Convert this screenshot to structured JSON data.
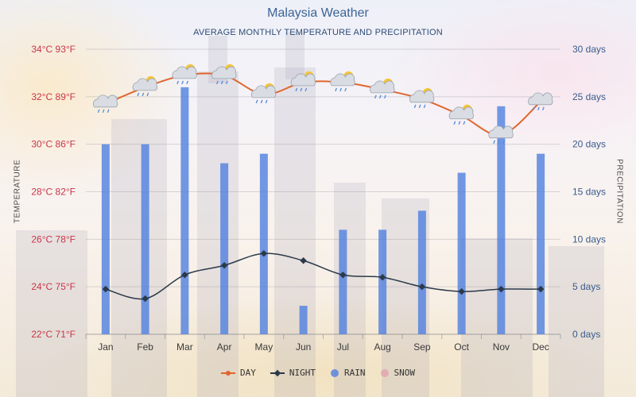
{
  "chart": {
    "title": "Malaysia Weather",
    "subtitle": "AVERAGE MONTHLY TEMPERATURE AND PRECIPITATION",
    "ylabel_left": "TEMPERATURE",
    "ylabel_right": "PRECIPITATION"
  },
  "legend": {
    "day": "DAY",
    "night": "NIGHT",
    "rain": "RAIN",
    "snow": "SNOW"
  },
  "colors": {
    "day": "#e0662e",
    "night": "#2b3a4a",
    "rain": "#4f7fe0",
    "snow": "#e0a8b4",
    "left_ticks": "#c8364a",
    "right_ticks": "#3a5c8c"
  },
  "chart_data": {
    "type": "line",
    "categories": [
      "Jan",
      "Feb",
      "Mar",
      "Apr",
      "May",
      "Jun",
      "Jul",
      "Aug",
      "Sep",
      "Oct",
      "Nov",
      "Dec"
    ],
    "series": [
      {
        "name": "DAY",
        "type": "line",
        "axis": "left",
        "unit": "°C",
        "values": [
          31.7,
          32.4,
          32.9,
          32.9,
          32.1,
          32.6,
          32.6,
          32.3,
          31.9,
          31.2,
          30.4,
          31.8
        ]
      },
      {
        "name": "NIGHT",
        "type": "line",
        "axis": "left",
        "unit": "°C",
        "values": [
          23.9,
          23.5,
          24.5,
          24.9,
          25.4,
          25.1,
          24.5,
          24.4,
          24.0,
          23.8,
          23.9,
          23.9
        ]
      },
      {
        "name": "RAIN",
        "type": "bar",
        "axis": "right",
        "unit": "days",
        "values": [
          20,
          20,
          26,
          18,
          19,
          3,
          11,
          11,
          13,
          17,
          24,
          19
        ]
      },
      {
        "name": "SNOW",
        "type": "bar",
        "axis": "right",
        "unit": "days",
        "values": [
          0,
          0,
          0,
          0,
          0,
          0,
          0,
          0,
          0,
          0,
          0,
          0
        ]
      }
    ],
    "left_axis": {
      "ylim": [
        22,
        34
      ],
      "tick_labels": [
        "22°C 71°F",
        "24°C 75°F",
        "26°C 78°F",
        "28°C 82°F",
        "30°C 86°F",
        "32°C 89°F",
        "34°C 93°F"
      ]
    },
    "right_axis": {
      "ylim": [
        0,
        30
      ],
      "tick_labels": [
        "0 days",
        "5 days",
        "10 days",
        "15 days",
        "20 days",
        "25 days",
        "30 days"
      ]
    },
    "weather_icons": [
      "rain-cloud",
      "sun-cloud-rain",
      "sun-cloud-rain",
      "sun-cloud-rain",
      "sun-cloud-rain",
      "sun-cloud-rain",
      "sun-cloud-rain",
      "sun-cloud-rain",
      "sun-cloud-rain",
      "sun-cloud-rain",
      "rain-cloud",
      "rain-cloud"
    ],
    "grid": true,
    "legend_position": "bottom"
  }
}
